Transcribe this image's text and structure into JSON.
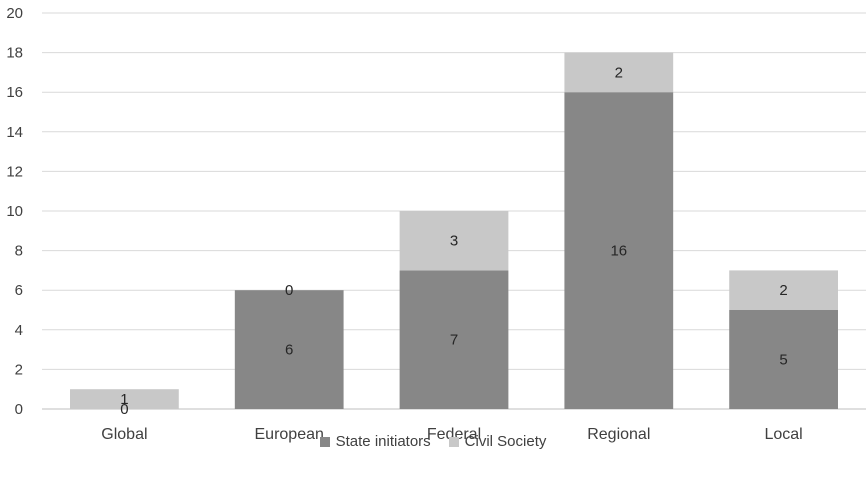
{
  "chart_data": {
    "type": "bar",
    "stacked": true,
    "categories": [
      "Global",
      "European",
      "Federal",
      "Regional",
      "Local"
    ],
    "series": [
      {
        "name": "State initiators",
        "values": [
          0,
          6,
          7,
          16,
          5
        ],
        "color": "#878787"
      },
      {
        "name": "Civil Society",
        "values": [
          1,
          0,
          3,
          2,
          2
        ],
        "color": "#c8c8c8"
      }
    ],
    "title": "",
    "xlabel": "",
    "ylabel": "",
    "ylim": [
      0,
      20
    ],
    "yticks": [
      0,
      2,
      4,
      6,
      8,
      10,
      12,
      14,
      16,
      18,
      20
    ],
    "grid": true,
    "legend_position": "bottom",
    "data_labels": true
  }
}
